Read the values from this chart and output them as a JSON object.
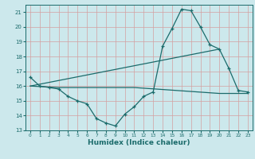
{
  "xlabel": "Humidex (Indice chaleur)",
  "xlim": [
    -0.5,
    23.5
  ],
  "ylim": [
    13,
    21.5
  ],
  "yticks": [
    13,
    14,
    15,
    16,
    17,
    18,
    19,
    20,
    21
  ],
  "xticks": [
    0,
    1,
    2,
    3,
    4,
    5,
    6,
    7,
    8,
    9,
    10,
    11,
    12,
    13,
    14,
    15,
    16,
    17,
    18,
    19,
    20,
    21,
    22,
    23
  ],
  "bg_color": "#cce8ec",
  "line_color": "#1b6b6b",
  "grid_color": "#e8c8c8",
  "line1_x": [
    0,
    1,
    2,
    3,
    4,
    5,
    6,
    7,
    8,
    9,
    10,
    11,
    12,
    13,
    14,
    15,
    16,
    17,
    18,
    19,
    20,
    21,
    22,
    23
  ],
  "line1_y": [
    16.6,
    16.0,
    15.9,
    15.8,
    15.3,
    15.0,
    14.8,
    13.8,
    13.5,
    13.3,
    14.1,
    14.6,
    15.3,
    15.6,
    18.7,
    19.9,
    21.2,
    21.1,
    20.0,
    18.8,
    18.5,
    17.2,
    15.7,
    15.6
  ],
  "line2_x": [
    0,
    3,
    11,
    20,
    23
  ],
  "line2_y": [
    16.0,
    15.9,
    15.9,
    15.5,
    15.5
  ],
  "line3_x": [
    0,
    20
  ],
  "line3_y": [
    16.0,
    18.5
  ]
}
